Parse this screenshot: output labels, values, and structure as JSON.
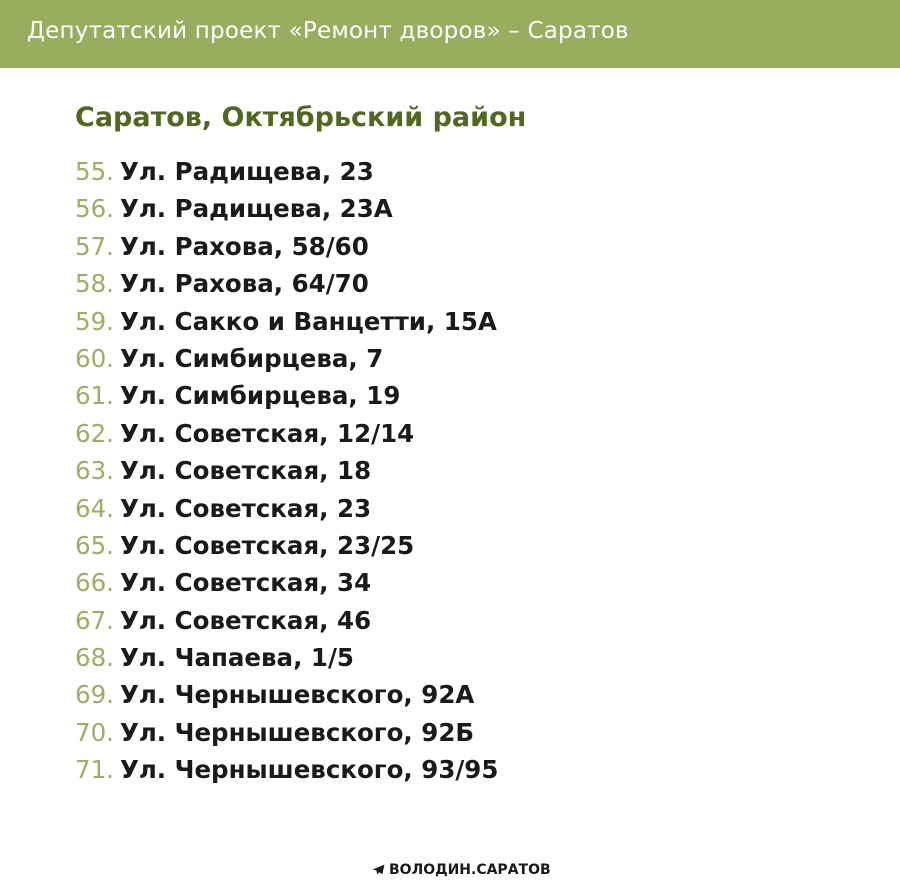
{
  "header": {
    "title": "Депутатский проект «Ремонт дворов» – Саратов"
  },
  "section_title": "Саратов, Октябрьский район",
  "items": [
    {
      "num": "55.",
      "text": "Ул. Радищева, 23"
    },
    {
      "num": "56.",
      "text": "Ул. Радищева, 23А"
    },
    {
      "num": "57.",
      "text": "Ул. Рахова, 58/60"
    },
    {
      "num": "58.",
      "text": "Ул. Рахова, 64/70"
    },
    {
      "num": "59.",
      "text": "Ул. Сакко и Ванцетти, 15А"
    },
    {
      "num": "60.",
      "text": "Ул. Симбирцева, 7"
    },
    {
      "num": "61.",
      "text": "Ул. Симбирцева, 19"
    },
    {
      "num": "62.",
      "text": "Ул. Советская, 12/14"
    },
    {
      "num": "63.",
      "text": "Ул. Советская, 18"
    },
    {
      "num": "64.",
      "text": "Ул. Советская, 23"
    },
    {
      "num": "65.",
      "text": "Ул. Советская, 23/25"
    },
    {
      "num": "66.",
      "text": "Ул. Советская, 34"
    },
    {
      "num": "67.",
      "text": "Ул. Советская, 46"
    },
    {
      "num": "68.",
      "text": "Ул. Чапаева, 1/5"
    },
    {
      "num": "69.",
      "text": "Ул. Чернышевского, 92А"
    },
    {
      "num": "70.",
      "text": "Ул. Чернышевского, 92Б"
    },
    {
      "num": "71.",
      "text": "Ул. Чернышевского, 93/95"
    }
  ],
  "footer": {
    "icon": "telegram-icon",
    "text": "ВОЛОДИН.САРАТОВ"
  },
  "colors": {
    "header_bg": "#99ad5f",
    "title": "#4f6a1d",
    "number": "#9bb062"
  }
}
